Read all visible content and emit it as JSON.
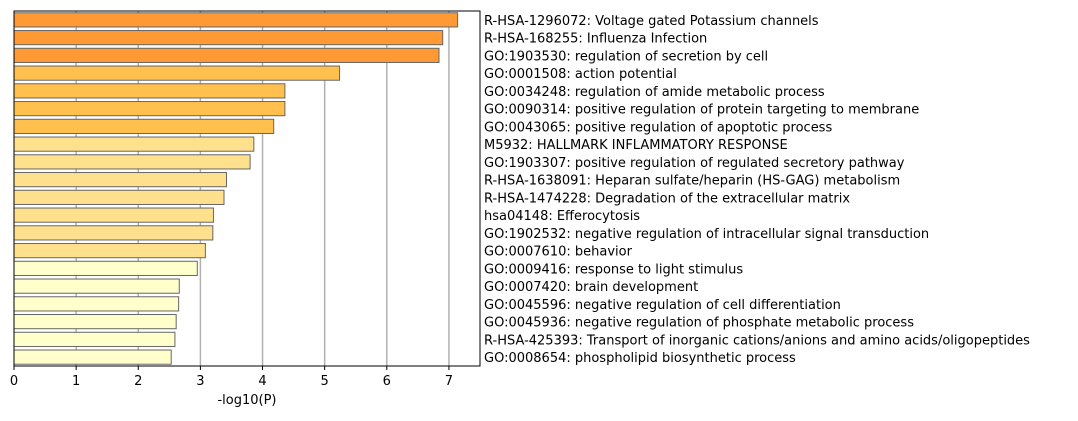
{
  "chart_data": {
    "type": "bar",
    "orientation": "horizontal",
    "xlabel": "-log10(P)",
    "xlim": [
      0,
      7.5
    ],
    "xticks": [
      0,
      1,
      2,
      3,
      4,
      5,
      6,
      7
    ],
    "grid": "x-major",
    "categories": [
      "R-HSA-1296072: Voltage gated Potassium channels",
      "R-HSA-168255: Influenza Infection",
      "GO:1903530: regulation of secretion by cell",
      "GO:0001508: action potential",
      "GO:0034248: regulation of amide metabolic process",
      "GO:0090314: positive regulation of protein targeting to membrane",
      "GO:0043065: positive regulation of apoptotic process",
      "M5932: HALLMARK INFLAMMATORY RESPONSE",
      "GO:1903307: positive regulation of regulated secretory pathway",
      "R-HSA-1638091: Heparan sulfate/heparin (HS-GAG) metabolism",
      "R-HSA-1474228: Degradation of the extracellular matrix",
      "hsa04148: Efferocytosis",
      "GO:1902532: negative regulation of intracellular signal transduction",
      "GO:0007610: behavior",
      "GO:0009416: response to light stimulus",
      "GO:0007420: brain development",
      "GO:0045596: negative regulation of cell differentiation",
      "GO:0045936: negative regulation of phosphate metabolic process",
      "R-HSA-425393: Transport of inorganic cations/anions and amino acids/oligopeptides",
      "GO:0008654: phospholipid biosynthetic process"
    ],
    "values": [
      7.14,
      6.9,
      6.84,
      5.24,
      4.36,
      4.36,
      4.18,
      3.86,
      3.8,
      3.42,
      3.38,
      3.21,
      3.2,
      3.08,
      2.95,
      2.66,
      2.65,
      2.61,
      2.59,
      2.53
    ],
    "colors": [
      "#ff9933",
      "#ff9933",
      "#ff9933",
      "#ffc04d",
      "#ffc04d",
      "#ffc04d",
      "#ffc04d",
      "#ffe08c",
      "#ffe08c",
      "#ffe08c",
      "#ffe08c",
      "#ffe08c",
      "#ffe08c",
      "#ffe08c",
      "#ffffcc",
      "#ffffcc",
      "#ffffcc",
      "#ffffcc",
      "#ffffcc",
      "#ffffcc"
    ],
    "bar_edge_color": "#666666",
    "grid_color": "#b0b0b0"
  }
}
